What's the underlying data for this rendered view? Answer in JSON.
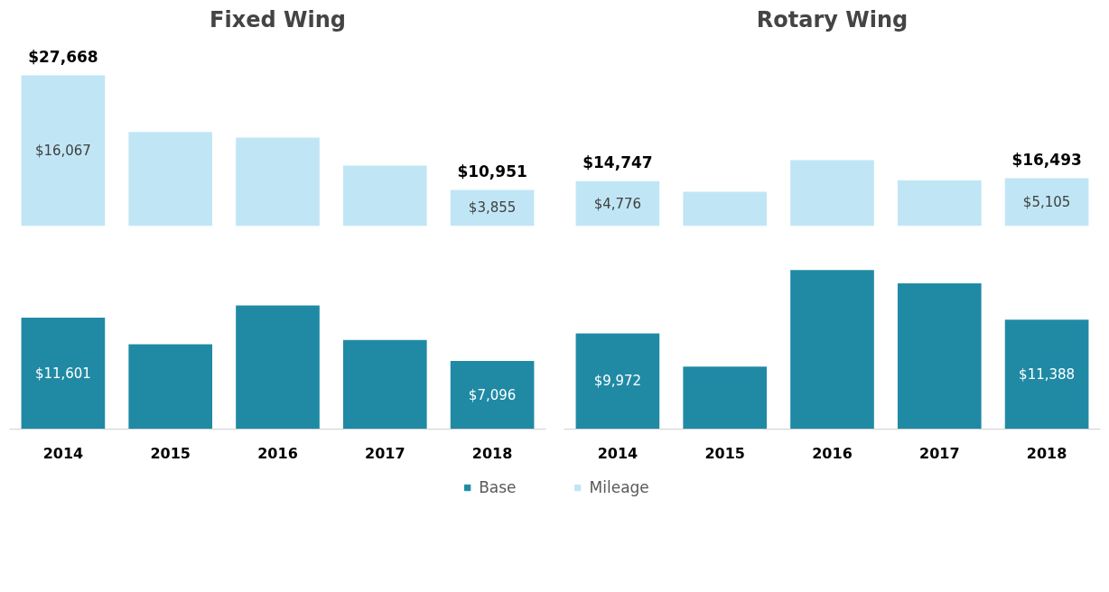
{
  "chart_data": [
    {
      "type": "bar",
      "title": "Fixed Wing",
      "categories": [
        "2014",
        "2015",
        "2016",
        "2017",
        "2018"
      ],
      "tick_labels": false,
      "legend": "bottom",
      "series": [
        {
          "name": "Mileage",
          "color": "#c0e6f5",
          "values": [
            16067,
            10040,
            9440,
            6440,
            3855
          ],
          "value_labels": [
            "$16,067",
            null,
            null,
            null,
            "$3,855"
          ]
        }
      ],
      "annotations": [
        {
          "text": "$27,668",
          "x": "2014",
          "y": 16067
        },
        {
          "text": "$10,951",
          "x": "2018",
          "y": 3855
        }
      ]
    },
    {
      "type": "bar",
      "title": "Rotary Wing",
      "categories": [
        "2014",
        "2015",
        "2016",
        "2017",
        "2018"
      ],
      "tick_labels": false,
      "legend": "bottom",
      "series": [
        {
          "name": "Mileage",
          "color": "#c0e6f5",
          "values": [
            4776,
            3650,
            7030,
            4890,
            5105
          ],
          "value_labels": [
            "$4,776",
            null,
            null,
            null,
            "$5,105"
          ]
        }
      ],
      "annotations": [
        {
          "text": "$14,747",
          "x": "2014",
          "y": 4776
        },
        {
          "text": "$16,493",
          "x": "2018",
          "y": 5105
        }
      ]
    },
    {
      "type": "bar",
      "categories": [
        "2014",
        "2015",
        "2016",
        "2017",
        "2018"
      ],
      "tick_labels": "x",
      "legend": "bottom",
      "series": [
        {
          "name": "Base",
          "color": "#208aa5",
          "values": [
            11601,
            8840,
            12870,
            9270,
            7096
          ],
          "value_labels": [
            "$11,601",
            null,
            null,
            null,
            "$7,096"
          ]
        }
      ]
    },
    {
      "type": "bar",
      "categories": [
        "2014",
        "2015",
        "2016",
        "2017",
        "2018"
      ],
      "tick_labels": "x",
      "legend": "bottom",
      "series": [
        {
          "name": "Base",
          "color": "#208aa5",
          "values": [
            9972,
            6500,
            16560,
            15170,
            11388
          ],
          "value_labels": [
            "$9,972",
            null,
            null,
            null,
            "$11,388"
          ]
        }
      ]
    }
  ]
}
